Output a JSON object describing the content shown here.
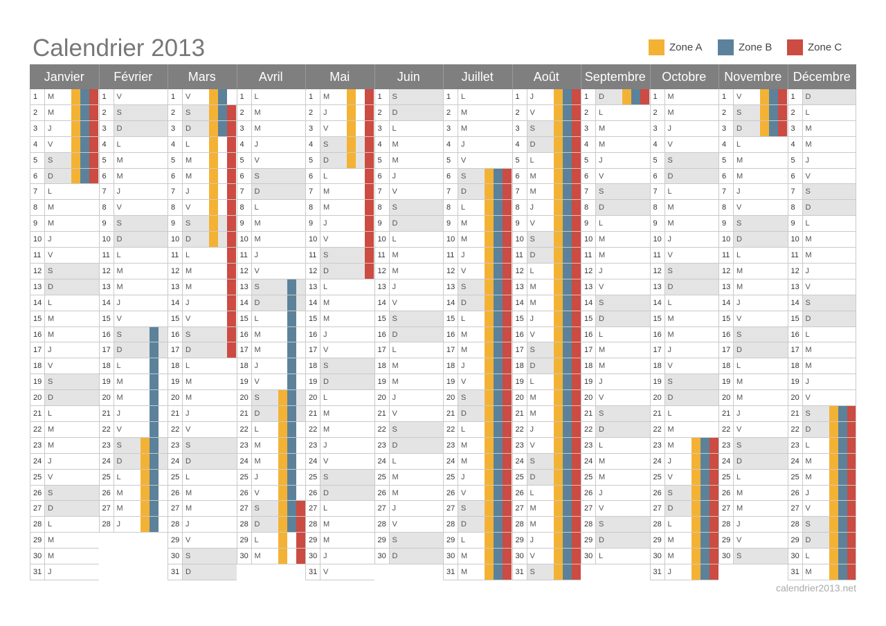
{
  "title": "Calendrier 2013",
  "footer": "calendrier2013.net",
  "legend": [
    {
      "label": "Zone A",
      "color": "#f4b235"
    },
    {
      "label": "Zone B",
      "color": "#5b829a"
    },
    {
      "label": "Zone C",
      "color": "#cc4b42"
    }
  ],
  "colors": {
    "header_bg": "#7f7f7f",
    "weekend_bg": "#e4e4e4",
    "grid": "#c9c9c9"
  },
  "months": [
    {
      "name": "Janvier",
      "days": 31,
      "first_weekday": 1,
      "vacations": [
        {
          "zone": "A",
          "from": 1,
          "to": 6
        },
        {
          "zone": "B",
          "from": 1,
          "to": 6
        },
        {
          "zone": "C",
          "from": 1,
          "to": 6
        }
      ]
    },
    {
      "name": "Février",
      "days": 28,
      "first_weekday": 4,
      "vacations": [
        {
          "zone": "B",
          "from": 16,
          "to": 28
        },
        {
          "zone": "A",
          "from": 23,
          "to": 28
        }
      ]
    },
    {
      "name": "Mars",
      "days": 31,
      "first_weekday": 4,
      "vacations": [
        {
          "zone": "A",
          "from": 1,
          "to": 10
        },
        {
          "zone": "B",
          "from": 1,
          "to": 3
        },
        {
          "zone": "C",
          "from": 2,
          "to": 17
        }
      ]
    },
    {
      "name": "Avril",
      "days": 30,
      "first_weekday": 0,
      "vacations": [
        {
          "zone": "B",
          "from": 13,
          "to": 28
        },
        {
          "zone": "A",
          "from": 20,
          "to": 30
        },
        {
          "zone": "C",
          "from": 27,
          "to": 30
        }
      ]
    },
    {
      "name": "Mai",
      "days": 31,
      "first_weekday": 2,
      "vacations": [
        {
          "zone": "A",
          "from": 1,
          "to": 5
        },
        {
          "zone": "C",
          "from": 1,
          "to": 12
        }
      ]
    },
    {
      "name": "Juin",
      "days": 30,
      "first_weekday": 5,
      "vacations": []
    },
    {
      "name": "Juillet",
      "days": 31,
      "first_weekday": 0,
      "vacations": [
        {
          "zone": "A",
          "from": 6,
          "to": 31
        },
        {
          "zone": "B",
          "from": 6,
          "to": 31
        },
        {
          "zone": "C",
          "from": 6,
          "to": 31
        }
      ]
    },
    {
      "name": "Août",
      "days": 31,
      "first_weekday": 3,
      "vacations": [
        {
          "zone": "A",
          "from": 1,
          "to": 31
        },
        {
          "zone": "B",
          "from": 1,
          "to": 31
        },
        {
          "zone": "C",
          "from": 1,
          "to": 31
        }
      ]
    },
    {
      "name": "Septembre",
      "days": 30,
      "first_weekday": 6,
      "vacations": [
        {
          "zone": "A",
          "from": 1,
          "to": 1
        },
        {
          "zone": "B",
          "from": 1,
          "to": 1
        },
        {
          "zone": "C",
          "from": 1,
          "to": 1
        }
      ]
    },
    {
      "name": "Octobre",
      "days": 31,
      "first_weekday": 1,
      "vacations": [
        {
          "zone": "A",
          "from": 23,
          "to": 31
        },
        {
          "zone": "B",
          "from": 23,
          "to": 31
        },
        {
          "zone": "C",
          "from": 23,
          "to": 31
        }
      ]
    },
    {
      "name": "Novembre",
      "days": 30,
      "first_weekday": 4,
      "vacations": [
        {
          "zone": "A",
          "from": 1,
          "to": 3
        },
        {
          "zone": "B",
          "from": 1,
          "to": 3
        },
        {
          "zone": "C",
          "from": 1,
          "to": 3
        }
      ]
    },
    {
      "name": "Décembre",
      "days": 31,
      "first_weekday": 6,
      "vacations": [
        {
          "zone": "A",
          "from": 21,
          "to": 31
        },
        {
          "zone": "B",
          "from": 21,
          "to": 31
        },
        {
          "zone": "C",
          "from": 21,
          "to": 31
        }
      ]
    }
  ],
  "weekday_letters": [
    "L",
    "M",
    "M",
    "J",
    "V",
    "S",
    "D"
  ]
}
